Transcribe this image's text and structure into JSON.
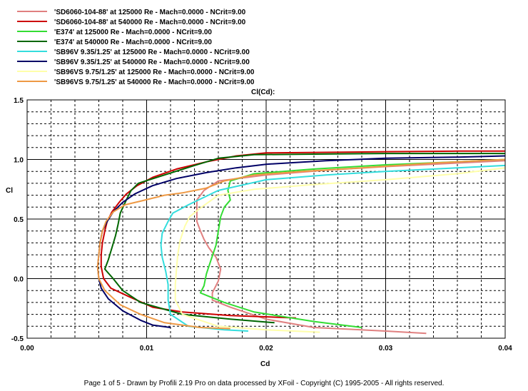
{
  "chart_data": {
    "type": "line",
    "title": "Cl(Cd):",
    "xlabel": "Cd",
    "ylabel": "Cl",
    "xlim": [
      0,
      0.04
    ],
    "ylim": [
      -0.5,
      1.5
    ],
    "x_ticks": [
      "0.00",
      "0.01",
      "0.02",
      "0.03",
      "0.04"
    ],
    "y_ticks": [
      "-0.5",
      "0.0",
      "0.5",
      "1.0",
      "1.5"
    ],
    "grid": true,
    "legend_position": "top-left",
    "series": [
      {
        "name": "'SD6060-104-88' at 125000 Re - Mach=0.0000 - NCrit=9.00",
        "color": "#e08080",
        "points": [
          [
            0.0334,
            -0.46
          ],
          [
            0.03,
            -0.44
          ],
          [
            0.024,
            -0.41
          ],
          [
            0.02,
            -0.34
          ],
          [
            0.017,
            -0.24
          ],
          [
            0.0155,
            -0.18
          ],
          [
            0.0155,
            -0.12
          ],
          [
            0.016,
            -0.02
          ],
          [
            0.0162,
            0.08
          ],
          [
            0.0158,
            0.18
          ],
          [
            0.0152,
            0.26
          ],
          [
            0.0148,
            0.33
          ],
          [
            0.0145,
            0.4
          ],
          [
            0.0142,
            0.48
          ],
          [
            0.0142,
            0.57
          ],
          [
            0.0142,
            0.66
          ],
          [
            0.0148,
            0.74
          ],
          [
            0.016,
            0.82
          ],
          [
            0.02,
            0.87
          ],
          [
            0.025,
            0.91
          ],
          [
            0.03,
            0.94
          ],
          [
            0.036,
            0.97
          ],
          [
            0.042,
            0.99
          ]
        ]
      },
      {
        "name": "'SD6060-104-88' at 540000 Re - Mach=0.0000 - NCrit=9.00",
        "color": "#cc0000",
        "points": [
          [
            0.0225,
            -0.33
          ],
          [
            0.017,
            -0.31
          ],
          [
            0.013,
            -0.28
          ],
          [
            0.0105,
            -0.24
          ],
          [
            0.0085,
            -0.15
          ],
          [
            0.007,
            -0.08
          ],
          [
            0.0064,
            0.0
          ],
          [
            0.0062,
            0.1
          ],
          [
            0.0062,
            0.2
          ],
          [
            0.0063,
            0.3
          ],
          [
            0.0065,
            0.4
          ],
          [
            0.0067,
            0.48
          ],
          [
            0.0071,
            0.56
          ],
          [
            0.0077,
            0.64
          ],
          [
            0.0083,
            0.71
          ],
          [
            0.0092,
            0.78
          ],
          [
            0.0105,
            0.85
          ],
          [
            0.0125,
            0.92
          ],
          [
            0.015,
            0.98
          ],
          [
            0.0175,
            1.03
          ],
          [
            0.02,
            1.055
          ],
          [
            0.025,
            1.06
          ],
          [
            0.03,
            1.065
          ],
          [
            0.036,
            1.07
          ],
          [
            0.042,
            1.07
          ]
        ]
      },
      {
        "name": "'E374' at 125000 Re - Mach=0.0000 - NCrit=9.00",
        "color": "#33dd33",
        "points": [
          [
            0.028,
            -0.41
          ],
          [
            0.024,
            -0.36
          ],
          [
            0.019,
            -0.28
          ],
          [
            0.0165,
            -0.2
          ],
          [
            0.015,
            -0.14
          ],
          [
            0.0145,
            -0.12
          ],
          [
            0.0148,
            -0.06
          ],
          [
            0.015,
            0.04
          ],
          [
            0.0154,
            0.16
          ],
          [
            0.0158,
            0.28
          ],
          [
            0.016,
            0.4
          ],
          [
            0.0162,
            0.52
          ],
          [
            0.0165,
            0.6
          ],
          [
            0.017,
            0.66
          ],
          [
            0.0168,
            0.74
          ],
          [
            0.017,
            0.82
          ],
          [
            0.019,
            0.88
          ],
          [
            0.024,
            0.92
          ],
          [
            0.03,
            0.955
          ],
          [
            0.036,
            0.98
          ],
          [
            0.042,
            1.0
          ]
        ]
      },
      {
        "name": "'E374' at 540000 Re - Mach=0.0000 - NCrit=9.00",
        "color": "#006600",
        "points": [
          [
            0.0207,
            -0.37
          ],
          [
            0.017,
            -0.34
          ],
          [
            0.013,
            -0.3
          ],
          [
            0.0095,
            -0.2
          ],
          [
            0.008,
            -0.1
          ],
          [
            0.0072,
            0.0
          ],
          [
            0.0065,
            0.08
          ],
          [
            0.0068,
            0.16
          ],
          [
            0.0071,
            0.26
          ],
          [
            0.0074,
            0.36
          ],
          [
            0.0076,
            0.45
          ],
          [
            0.0078,
            0.55
          ],
          [
            0.0083,
            0.66
          ],
          [
            0.0087,
            0.74
          ],
          [
            0.0093,
            0.8
          ],
          [
            0.0115,
            0.87
          ],
          [
            0.014,
            0.95
          ],
          [
            0.016,
            1.01
          ],
          [
            0.019,
            1.04
          ],
          [
            0.024,
            1.045
          ],
          [
            0.03,
            1.05
          ],
          [
            0.036,
            1.05
          ],
          [
            0.042,
            1.05
          ]
        ]
      },
      {
        "name": "'SB96V 9.35/1.25' at 125000 Re - Mach=0.0000 - NCrit=9.00",
        "color": "#33dddd",
        "points": [
          [
            0.0185,
            -0.44
          ],
          [
            0.0165,
            -0.43
          ],
          [
            0.0135,
            -0.4
          ],
          [
            0.012,
            -0.3
          ],
          [
            0.0118,
            -0.18
          ],
          [
            0.0118,
            -0.05
          ],
          [
            0.0116,
            0.06
          ],
          [
            0.0113,
            0.18
          ],
          [
            0.0112,
            0.28
          ],
          [
            0.0113,
            0.38
          ],
          [
            0.0118,
            0.48
          ],
          [
            0.0122,
            0.55
          ],
          [
            0.0135,
            0.62
          ],
          [
            0.016,
            0.74
          ],
          [
            0.02,
            0.83
          ],
          [
            0.025,
            0.87
          ],
          [
            0.03,
            0.9
          ],
          [
            0.036,
            0.93
          ],
          [
            0.042,
            0.95
          ]
        ]
      },
      {
        "name": "'SB96V 9.35/1.25' at 540000 Re - Mach=0.0000 - NCrit=9.00",
        "color": "#000066",
        "points": [
          [
            0.012,
            -0.41
          ],
          [
            0.0105,
            -0.39
          ],
          [
            0.0095,
            -0.35
          ],
          [
            0.008,
            -0.27
          ],
          [
            0.0068,
            -0.17
          ],
          [
            0.0062,
            -0.08
          ],
          [
            0.006,
            0.0
          ],
          [
            0.0059,
            0.1
          ],
          [
            0.006,
            0.2
          ],
          [
            0.0061,
            0.3
          ],
          [
            0.0063,
            0.4
          ],
          [
            0.0067,
            0.48
          ],
          [
            0.0072,
            0.56
          ],
          [
            0.008,
            0.64
          ],
          [
            0.009,
            0.71
          ],
          [
            0.0105,
            0.78
          ],
          [
            0.0125,
            0.84
          ],
          [
            0.015,
            0.89
          ],
          [
            0.0175,
            0.93
          ],
          [
            0.02,
            0.96
          ],
          [
            0.025,
            0.99
          ],
          [
            0.03,
            1.01
          ],
          [
            0.036,
            1.02
          ],
          [
            0.042,
            1.03
          ]
        ]
      },
      {
        "name": "'SB96VS 9.75/1.25' at 125000 Re - Mach=0.0000 - NCrit=9.00",
        "color": "#ffffaa",
        "points": [
          [
            0.0245,
            -0.45
          ],
          [
            0.02,
            -0.43
          ],
          [
            0.016,
            -0.4
          ],
          [
            0.013,
            -0.3
          ],
          [
            0.0124,
            -0.18
          ],
          [
            0.0124,
            -0.05
          ],
          [
            0.0125,
            0.08
          ],
          [
            0.0126,
            0.2
          ],
          [
            0.0128,
            0.32
          ],
          [
            0.0132,
            0.44
          ],
          [
            0.0136,
            0.52
          ],
          [
            0.0146,
            0.6
          ],
          [
            0.016,
            0.7
          ],
          [
            0.019,
            0.75
          ],
          [
            0.024,
            0.79
          ],
          [
            0.03,
            0.83
          ],
          [
            0.036,
            0.88
          ],
          [
            0.042,
            0.93
          ]
        ]
      },
      {
        "name": "'SB96VS 9.75/1.25' at 540000 Re - Mach=0.0000 - NCrit=9.00",
        "color": "#ee9944",
        "points": [
          [
            0.017,
            -0.42
          ],
          [
            0.0145,
            -0.41
          ],
          [
            0.0115,
            -0.37
          ],
          [
            0.0095,
            -0.3
          ],
          [
            0.0078,
            -0.22
          ],
          [
            0.0065,
            -0.1
          ],
          [
            0.006,
            0.0
          ],
          [
            0.0059,
            0.1
          ],
          [
            0.006,
            0.2
          ],
          [
            0.0061,
            0.3
          ],
          [
            0.0063,
            0.4
          ],
          [
            0.0066,
            0.48
          ],
          [
            0.0072,
            0.56
          ],
          [
            0.0082,
            0.62
          ],
          [
            0.0095,
            0.65
          ],
          [
            0.0115,
            0.7
          ],
          [
            0.013,
            0.72
          ],
          [
            0.015,
            0.76
          ],
          [
            0.0165,
            0.82
          ],
          [
            0.019,
            0.87
          ],
          [
            0.023,
            0.9
          ],
          [
            0.028,
            0.93
          ],
          [
            0.034,
            0.97
          ],
          [
            0.042,
            1.0
          ]
        ]
      }
    ]
  },
  "footer": "Page 1 of 5  -  Drawn by Profili 2.19 Pro on data processed by  XFoil - Copyright (C) 1995-2005 - All rights reserved."
}
